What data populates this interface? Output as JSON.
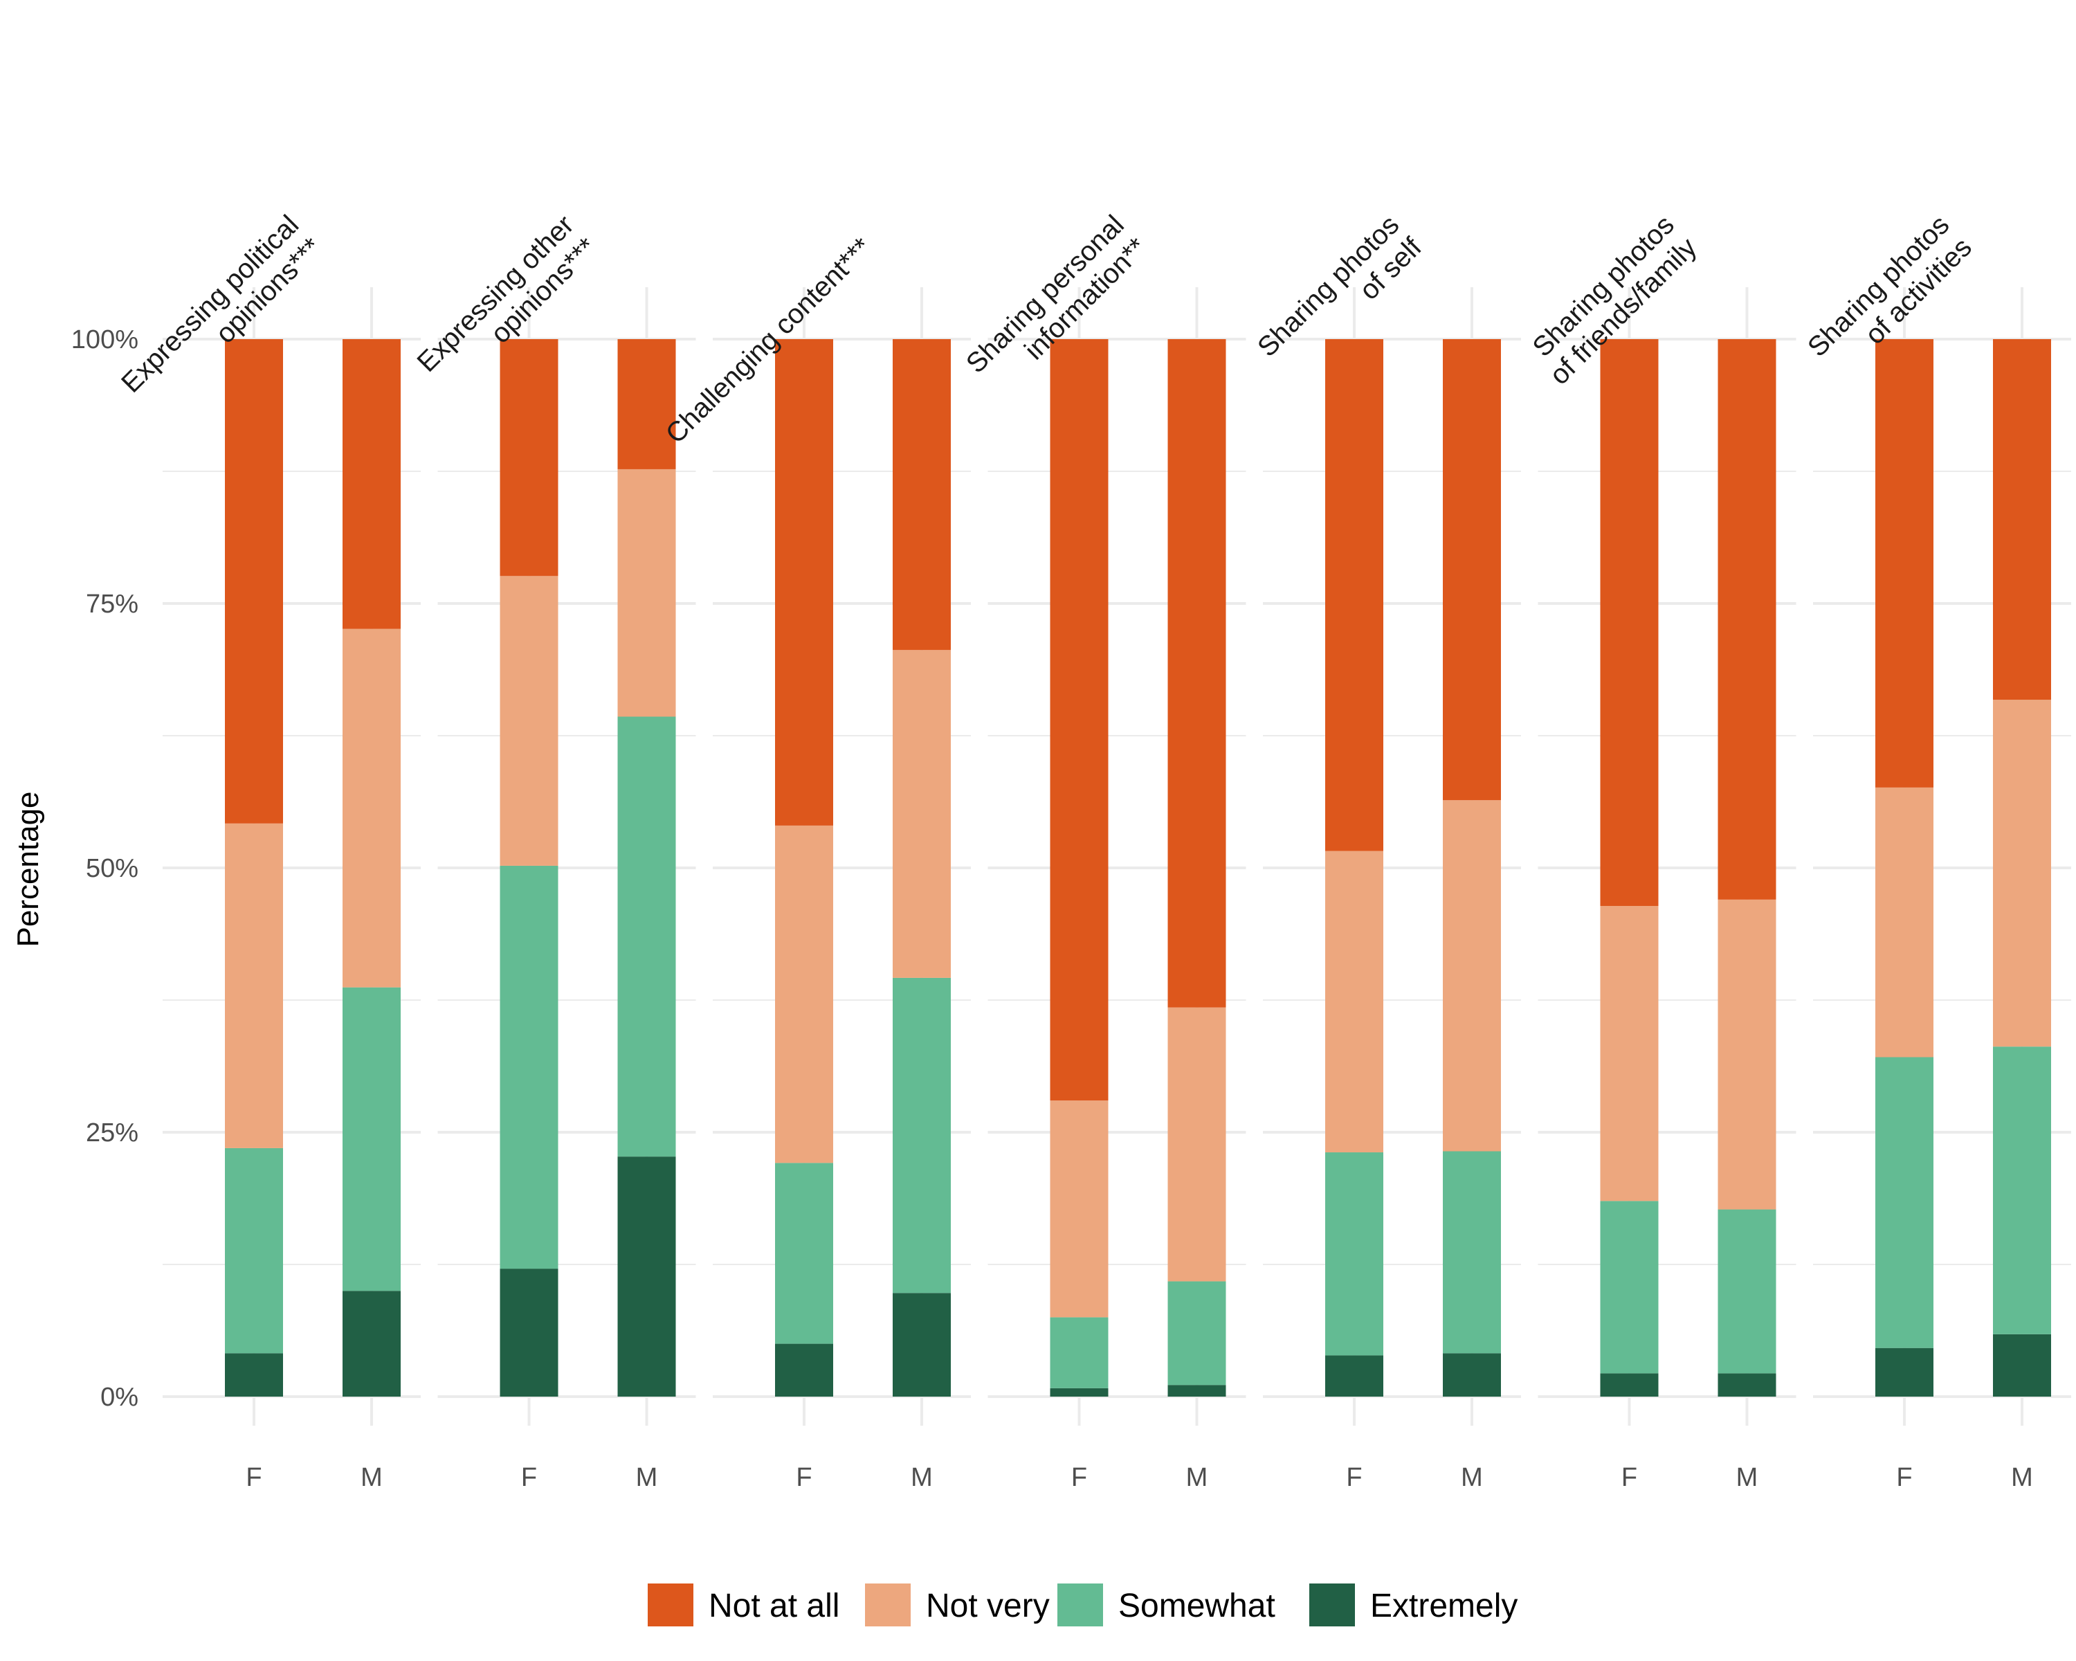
{
  "chart_data": {
    "type": "bar",
    "stacked": true,
    "ylabel": "Percentage",
    "ylim": [
      0,
      100
    ],
    "yticks": [
      "0%",
      "25%",
      "50%",
      "75%",
      "100%"
    ],
    "groups": [
      "F",
      "M"
    ],
    "legend": {
      "position": "bottom",
      "entries": [
        {
          "name": "Not at all",
          "color": "#dd571c"
        },
        {
          "name": "Not very",
          "color": "#eda77e"
        },
        {
          "name": "Somewhat",
          "color": "#63bb93"
        },
        {
          "name": "Extremely",
          "color": "#216045"
        }
      ]
    },
    "stack_order_bottom_to_top": [
      "Extremely",
      "Somewhat",
      "Not very",
      "Not at all"
    ],
    "panels": [
      {
        "title_lines": [
          "Expressing political",
          "opinions***"
        ],
        "bars": [
          {
            "group": "F",
            "Extremely": 4.1,
            "Somewhat": 19.4,
            "Not very": 30.7,
            "Not at all": 45.8
          },
          {
            "group": "M",
            "Extremely": 10.0,
            "Somewhat": 28.7,
            "Not very": 33.9,
            "Not at all": 27.4
          }
        ]
      },
      {
        "title_lines": [
          "Expressing other",
          "opinions***"
        ],
        "bars": [
          {
            "group": "F",
            "Extremely": 12.1,
            "Somewhat": 38.1,
            "Not very": 27.4,
            "Not at all": 22.4
          },
          {
            "group": "M",
            "Extremely": 22.7,
            "Somewhat": 41.6,
            "Not very": 23.4,
            "Not at all": 12.3
          }
        ]
      },
      {
        "title_lines": [
          "Challenging content***"
        ],
        "bars": [
          {
            "group": "F",
            "Extremely": 5.0,
            "Somewhat": 17.1,
            "Not very": 31.9,
            "Not at all": 46.0
          },
          {
            "group": "M",
            "Extremely": 9.8,
            "Somewhat": 29.8,
            "Not very": 31.0,
            "Not at all": 29.4
          }
        ]
      },
      {
        "title_lines": [
          "Sharing personal",
          "information**"
        ],
        "bars": [
          {
            "group": "F",
            "Extremely": 0.8,
            "Somewhat": 6.7,
            "Not very": 20.5,
            "Not at all": 72.0
          },
          {
            "group": "M",
            "Extremely": 1.1,
            "Somewhat": 9.8,
            "Not very": 25.9,
            "Not at all": 63.2
          }
        ]
      },
      {
        "title_lines": [
          "Sharing photos",
          "of self"
        ],
        "bars": [
          {
            "group": "F",
            "Extremely": 3.9,
            "Somewhat": 19.2,
            "Not very": 28.5,
            "Not at all": 48.4
          },
          {
            "group": "M",
            "Extremely": 4.1,
            "Somewhat": 19.1,
            "Not very": 33.2,
            "Not at all": 43.6
          }
        ]
      },
      {
        "title_lines": [
          "Sharing photos",
          "of friends/family"
        ],
        "bars": [
          {
            "group": "F",
            "Extremely": 2.2,
            "Somewhat": 16.3,
            "Not very": 27.9,
            "Not at all": 53.6
          },
          {
            "group": "M",
            "Extremely": 2.2,
            "Somewhat": 15.5,
            "Not very": 29.3,
            "Not at all": 53.0
          }
        ]
      },
      {
        "title_lines": [
          "Sharing photos",
          "of activities"
        ],
        "bars": [
          {
            "group": "F",
            "Extremely": 4.6,
            "Somewhat": 27.5,
            "Not very": 25.5,
            "Not at all": 42.4
          },
          {
            "group": "M",
            "Extremely": 5.9,
            "Somewhat": 27.2,
            "Not very": 32.8,
            "Not at all": 34.1
          }
        ]
      }
    ]
  }
}
